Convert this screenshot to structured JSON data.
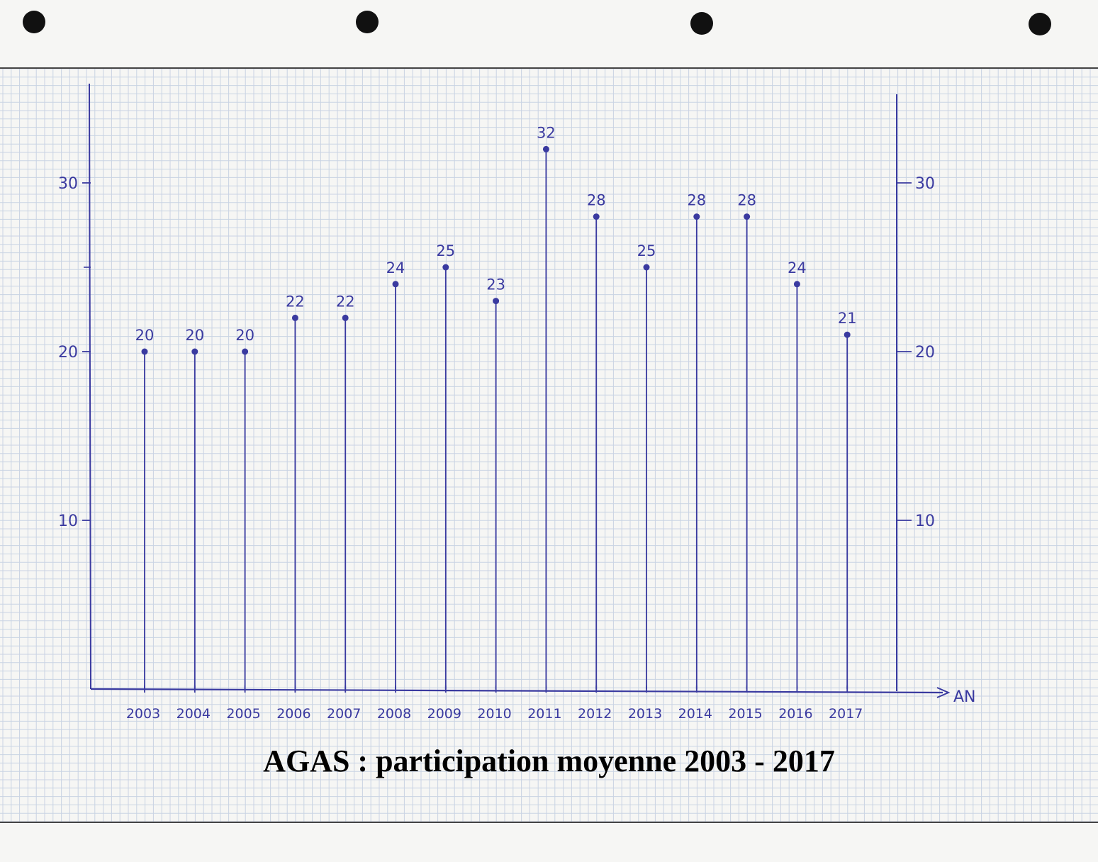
{
  "caption": "AGAS : participation moyenne 2003 - 2017",
  "chart_data": {
    "type": "bar",
    "style": "stem (lollipop) chart, hand-drawn on graph paper",
    "title": "AGAS : participation moyenne 2003 - 2017",
    "xlabel": "AN",
    "ylabel": "",
    "categories": [
      "2003",
      "2004",
      "2005",
      "2006",
      "2007",
      "2008",
      "2009",
      "2010",
      "2011",
      "2012",
      "2013",
      "2014",
      "2015",
      "2016",
      "2017"
    ],
    "values": [
      20,
      20,
      20,
      22,
      22,
      24,
      25,
      23,
      32,
      28,
      25,
      28,
      28,
      24,
      21
    ],
    "data_labels": [
      "20",
      "20",
      "20",
      "22",
      "22",
      "24",
      "25",
      "23",
      "32",
      "28",
      "25",
      "28",
      "28",
      "24",
      "21"
    ],
    "ylim": [
      0,
      36
    ],
    "yticks": [
      10,
      20,
      30
    ],
    "ytick_labels": [
      "10",
      "20",
      "30"
    ],
    "secondary_y_axis": true,
    "grid": true,
    "colors": {
      "ink": "#3a3aa0",
      "grid": "#c9d3e3",
      "paper": "#f6f6f4"
    }
  }
}
